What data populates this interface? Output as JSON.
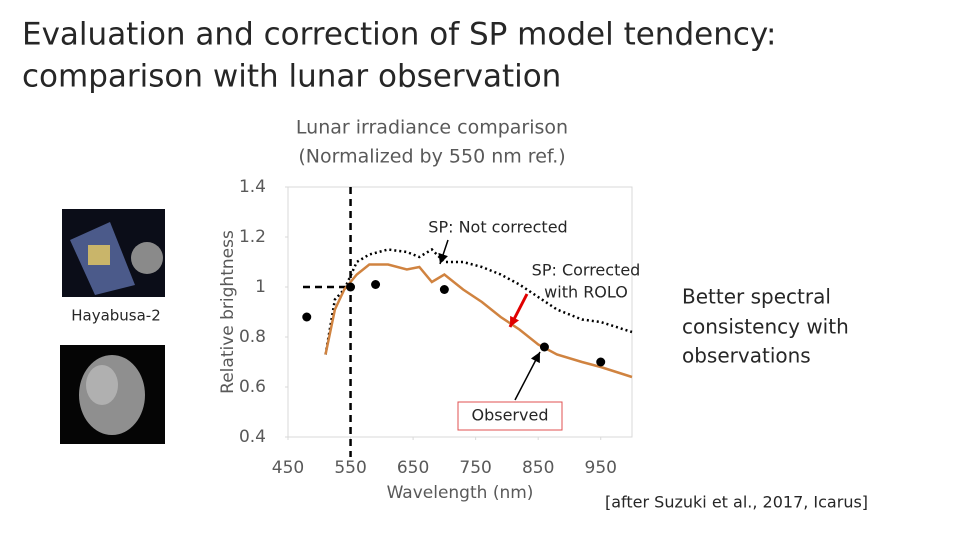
{
  "header": {
    "title": [
      "Evaluation and correction of SP model tendency:",
      "comparison with lunar observation"
    ]
  },
  "image_label": "Hayabusa-2",
  "summary": [
    "Better spectral",
    "consistency with",
    "observations"
  ],
  "citation": "[after Suzuki et al., 2017, Icarus]",
  "chart_data": {
    "type": "line",
    "title": [
      "Lunar irradiance comparison",
      "(Normalized by 550 nm ref.)"
    ],
    "x_label": "Wavelength (nm)",
    "y_label": "Relative brightness",
    "xlim": [
      450,
      1000
    ],
    "xticks": [
      450,
      550,
      650,
      750,
      850,
      950
    ],
    "ylim": [
      0.4,
      1.4
    ],
    "yticks": [
      0.4,
      0.6,
      0.8,
      1,
      1.2,
      1.4
    ],
    "reference": {
      "x": 550,
      "y": 1
    },
    "series": [
      {
        "name": [
          "SP: Not corrected"
        ],
        "color": "#000000",
        "style": "dotted",
        "x": [
          510,
          525,
          540,
          560,
          580,
          610,
          640,
          660,
          680,
          700,
          730,
          760,
          790,
          820,
          850,
          880,
          920,
          950,
          1000
        ],
        "values": [
          0.73,
          0.95,
          0.99,
          1.1,
          1.13,
          1.15,
          1.14,
          1.12,
          1.15,
          1.1,
          1.1,
          1.08,
          1.05,
          1.01,
          0.96,
          0.91,
          0.87,
          0.86,
          0.82
        ]
      },
      {
        "name": [
          "SP: Corrected",
          "with ROLO"
        ],
        "color": "#d08340",
        "style": "solid",
        "x": [
          510,
          525,
          540,
          560,
          580,
          610,
          640,
          660,
          680,
          700,
          730,
          760,
          790,
          820,
          850,
          880,
          920,
          950,
          1000
        ],
        "values": [
          0.73,
          0.91,
          0.99,
          1.05,
          1.09,
          1.09,
          1.07,
          1.08,
          1.02,
          1.05,
          0.99,
          0.94,
          0.88,
          0.83,
          0.77,
          0.73,
          0.7,
          0.68,
          0.64
        ]
      },
      {
        "name": [
          "Observed"
        ],
        "color": "#000000",
        "style": "markers",
        "x": [
          480,
          550,
          590,
          700,
          860,
          950
        ],
        "values": [
          0.88,
          1,
          1.01,
          0.99,
          0.76,
          0.7
        ]
      }
    ]
  }
}
